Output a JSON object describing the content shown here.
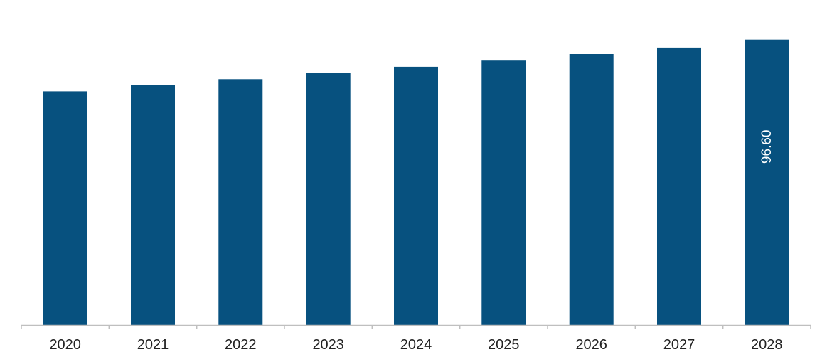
{
  "chart_data": {
    "type": "bar",
    "title": "",
    "xlabel": "",
    "ylabel": "",
    "categories": [
      "2020",
      "2021",
      "2022",
      "2023",
      "2024",
      "2025",
      "2026",
      "2027",
      "2028"
    ],
    "values": [
      79.1,
      81.2,
      83.2,
      85.3,
      87.4,
      89.5,
      91.7,
      93.9,
      96.6
    ],
    "data_labels": [
      null,
      null,
      null,
      null,
      null,
      null,
      null,
      null,
      "96.60"
    ],
    "ylim": [
      0,
      110
    ],
    "grid": false,
    "legend": "none",
    "colors": {
      "bar": "#07517F",
      "axis": "#BFBFBF",
      "tick_text": "#222222",
      "data_label_text": "#FFFFFF"
    }
  }
}
